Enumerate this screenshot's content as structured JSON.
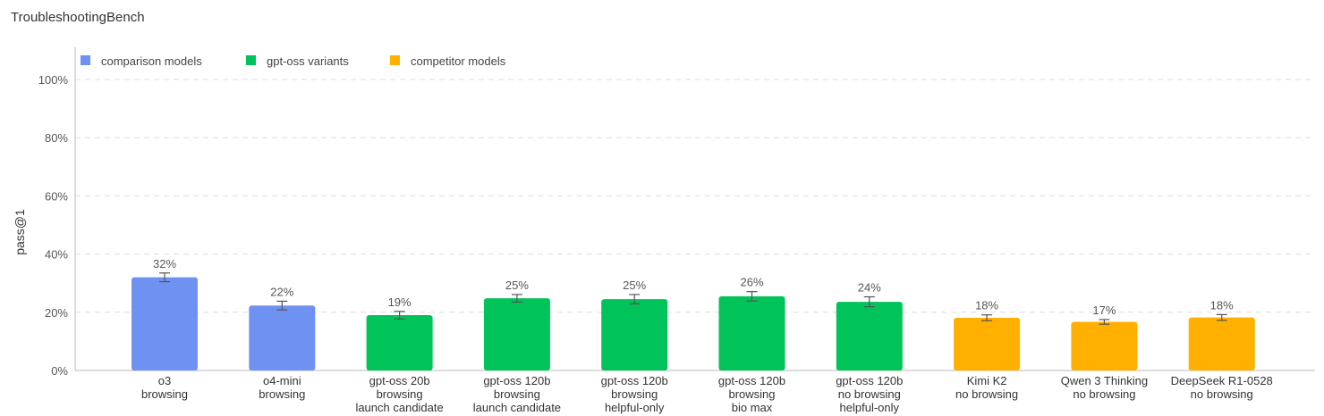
{
  "chart_data": {
    "type": "bar",
    "title": "TroubleshootingBench",
    "ylabel": "pass@1",
    "xlabel": "",
    "ylim": [
      0,
      100
    ],
    "yticks": [
      0,
      20,
      40,
      60,
      80,
      100
    ],
    "ytick_labels": [
      "0%",
      "20%",
      "40%",
      "60%",
      "80%",
      "100%"
    ],
    "grid": true,
    "legend_position": "top-left",
    "legend": [
      {
        "key": "comparison",
        "label": "comparison models",
        "color": "#6f91f2"
      },
      {
        "key": "gptoss",
        "label": "gpt-oss variants",
        "color": "#00c35a"
      },
      {
        "key": "competitor",
        "label": "competitor models",
        "color": "#ffb000"
      }
    ],
    "categories": [
      [
        "o3",
        "browsing"
      ],
      [
        "o4-mini",
        "browsing"
      ],
      [
        "gpt-oss 20b",
        "browsing",
        "launch candidate"
      ],
      [
        "gpt-oss 120b",
        "browsing",
        "launch candidate"
      ],
      [
        "gpt-oss 120b",
        "browsing",
        "helpful-only"
      ],
      [
        "gpt-oss 120b",
        "browsing",
        "bio max"
      ],
      [
        "gpt-oss 120b",
        "no browsing",
        "helpful-only"
      ],
      [
        "Kimi K2",
        "no browsing"
      ],
      [
        "Qwen 3 Thinking",
        "no browsing"
      ],
      [
        "DeepSeek R1-0528",
        "no browsing"
      ]
    ],
    "values": [
      32,
      22,
      19,
      25,
      25,
      26,
      24,
      18,
      17,
      18
    ],
    "plotted_values": [
      32.0,
      22.3,
      19.0,
      24.8,
      24.5,
      25.5,
      23.6,
      18.1,
      16.7,
      18.2
    ],
    "error": [
      1.5,
      1.5,
      1.3,
      1.3,
      1.6,
      1.6,
      1.7,
      1.0,
      0.8,
      1.0
    ],
    "value_labels": [
      "32%",
      "22%",
      "19%",
      "25%",
      "25%",
      "26%",
      "24%",
      "18%",
      "17%",
      "18%"
    ],
    "groups": [
      "comparison",
      "comparison",
      "gptoss",
      "gptoss",
      "gptoss",
      "gptoss",
      "gptoss",
      "competitor",
      "competitor",
      "competitor"
    ]
  }
}
